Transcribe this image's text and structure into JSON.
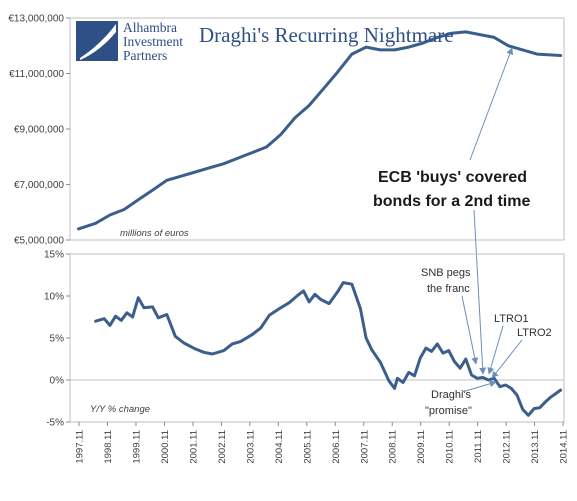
{
  "chart_data": [
    {
      "type": "line",
      "title": "Draghi's Recurring Nightmare",
      "logo": {
        "line1": "Alhambra",
        "line2": "Investment",
        "line3": "Partners"
      },
      "ylabel_note": "millions of euros",
      "ylim": [
        5000000,
        13000000
      ],
      "yticks": [
        5000000,
        7000000,
        9000000,
        11000000,
        13000000
      ],
      "ytick_labels": [
        "€5,000,000",
        "€7,000,000",
        "€9,000,000",
        "€11,000,000",
        "€13,000,000"
      ],
      "grid": false,
      "series": [
        {
          "color": "#3b5e8c",
          "x": [
            1997.9,
            1998.5,
            1999.0,
            1999.5,
            2000.0,
            2000.5,
            2001.0,
            2001.5,
            2002.0,
            2002.5,
            2003.0,
            2003.5,
            2004.0,
            2004.5,
            2005.0,
            2005.5,
            2006.0,
            2006.5,
            2007.0,
            2007.5,
            2008.0,
            2008.5,
            2009.0,
            2009.5,
            2010.0,
            2010.5,
            2011.0,
            2011.5,
            2012.0,
            2012.5,
            2013.0,
            2013.5,
            2014.0,
            2014.83
          ],
          "y": [
            5400000,
            5600000,
            5900000,
            6100000,
            6450000,
            6800000,
            7150000,
            7300000,
            7450000,
            7600000,
            7750000,
            7950000,
            8150000,
            8350000,
            8800000,
            9400000,
            9850000,
            10450000,
            11050000,
            11700000,
            11950000,
            11850000,
            11850000,
            11950000,
            12100000,
            12300000,
            12450000,
            12500000,
            12400000,
            12300000,
            12000000,
            11850000,
            11700000,
            11650000
          ]
        }
      ]
    },
    {
      "type": "line",
      "ylabel_note": "Y/Y % change",
      "ylim": [
        -5,
        15
      ],
      "yticks": [
        -5,
        0,
        5,
        10,
        15
      ],
      "ytick_labels": [
        "-5%",
        "0%",
        "5%",
        "10%",
        "15%"
      ],
      "x_tick_labels": [
        "1997.11",
        "1998.11",
        "1999.11",
        "2000.11",
        "2001.11",
        "2002.11",
        "2003.11",
        "2004.11",
        "2005.11",
        "2006.11",
        "2007.11",
        "2008.11",
        "2009.11",
        "2010.11",
        "2011.11",
        "2012.11",
        "2013.11",
        "2014.11"
      ],
      "grid": false,
      "series": [
        {
          "color": "#3b5e8c",
          "x": [
            1998.5,
            1998.8,
            1999.0,
            1999.2,
            1999.4,
            1999.6,
            1999.8,
            2000.0,
            2000.2,
            2000.5,
            2000.7,
            2001.0,
            2001.3,
            2001.6,
            2002.0,
            2002.3,
            2002.6,
            2003.0,
            2003.3,
            2003.6,
            2004.0,
            2004.3,
            2004.6,
            2005.0,
            2005.3,
            2005.6,
            2005.8,
            2006.0,
            2006.2,
            2006.4,
            2006.7,
            2007.0,
            2007.2,
            2007.5,
            2007.8,
            2008.0,
            2008.2,
            2008.5,
            2008.8,
            2009.0,
            2009.1,
            2009.3,
            2009.5,
            2009.7,
            2009.9,
            2010.1,
            2010.3,
            2010.5,
            2010.7,
            2010.9,
            2011.1,
            2011.3,
            2011.5,
            2011.7,
            2011.9,
            2012.1,
            2012.3,
            2012.5,
            2012.7,
            2012.9,
            2013.1,
            2013.3,
            2013.5,
            2013.7,
            2013.9,
            2014.1,
            2014.3,
            2014.5,
            2014.83
          ],
          "y": [
            7.0,
            7.3,
            6.5,
            7.6,
            7.1,
            8.0,
            7.5,
            9.8,
            8.6,
            8.7,
            7.4,
            7.8,
            5.2,
            4.4,
            3.7,
            3.3,
            3.1,
            3.5,
            4.3,
            4.6,
            5.4,
            6.2,
            7.7,
            8.6,
            9.2,
            10.1,
            10.6,
            9.3,
            10.2,
            9.6,
            9.1,
            10.5,
            11.6,
            11.4,
            8.5,
            5.0,
            3.6,
            2.1,
            -0.1,
            -1.0,
            0.2,
            -0.3,
            0.9,
            0.5,
            2.6,
            3.8,
            3.4,
            4.3,
            3.2,
            3.5,
            2.2,
            1.4,
            2.5,
            0.6,
            0.2,
            0.3,
            0.0,
            0.2,
            -0.8,
            -0.6,
            -1.0,
            -1.8,
            -3.5,
            -4.2,
            -3.4,
            -3.3,
            -2.6,
            -2.0,
            -1.2
          ]
        }
      ]
    }
  ],
  "annotations": {
    "ecb_line1": "ECB 'buys' covered",
    "ecb_line2": "bonds for a 2nd time",
    "snb_line1": "SNB pegs",
    "snb_line2": "the franc",
    "ltro1": "LTRO1",
    "ltro2": "LTRO2",
    "draghi_line1": "Draghi's",
    "draghi_line2": "\"promise\""
  }
}
